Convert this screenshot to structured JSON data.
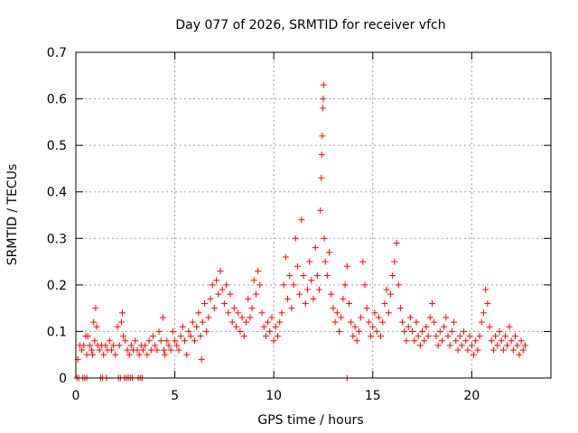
{
  "chart_data": {
    "type": "scatter",
    "title": "Day 077 of 2026, SRMTID for receiver vfch",
    "xlabel": "GPS time / hours",
    "ylabel": "SRMTID / TECUs",
    "xlim": [
      0,
      24
    ],
    "ylim": [
      0,
      0.7
    ],
    "x_ticks": [
      0,
      5,
      10,
      15,
      20
    ],
    "x_tick_labels": [
      "0",
      "5",
      "10",
      "15",
      "20"
    ],
    "y_ticks": [
      0,
      0.1,
      0.2,
      0.3,
      0.4,
      0.5,
      0.6,
      0.7
    ],
    "y_tick_labels": [
      "0",
      "0.1",
      "0.2",
      "0.3",
      "0.4",
      "0.5",
      "0.6",
      "0.7"
    ],
    "grid": true,
    "marker": "+",
    "color": "#ff0000",
    "series": [
      {
        "name": "SRMTID",
        "points": [
          [
            0.05,
            0.0
          ],
          [
            0.15,
            0.0
          ],
          [
            0.35,
            0.0
          ],
          [
            0.45,
            0.0
          ],
          [
            0.55,
            0.0
          ],
          [
            1.25,
            0.0
          ],
          [
            1.35,
            0.0
          ],
          [
            1.55,
            0.0
          ],
          [
            2.15,
            0.0
          ],
          [
            2.25,
            0.0
          ],
          [
            2.45,
            0.0
          ],
          [
            2.55,
            0.0
          ],
          [
            2.65,
            0.0
          ],
          [
            2.75,
            0.0
          ],
          [
            2.85,
            0.0
          ],
          [
            3.15,
            0.0
          ],
          [
            3.25,
            0.0
          ],
          [
            3.35,
            0.0
          ],
          [
            13.7,
            0.0
          ],
          [
            0.1,
            0.04
          ],
          [
            0.2,
            0.07
          ],
          [
            0.3,
            0.06
          ],
          [
            0.4,
            0.07
          ],
          [
            0.5,
            0.09
          ],
          [
            0.55,
            0.05
          ],
          [
            0.6,
            0.09
          ],
          [
            0.7,
            0.07
          ],
          [
            0.8,
            0.06
          ],
          [
            0.85,
            0.05
          ],
          [
            0.9,
            0.12
          ],
          [
            0.95,
            0.08
          ],
          [
            1.0,
            0.15
          ],
          [
            1.05,
            0.11
          ],
          [
            1.1,
            0.07
          ],
          [
            1.2,
            0.06
          ],
          [
            1.3,
            0.07
          ],
          [
            1.4,
            0.05
          ],
          [
            1.5,
            0.07
          ],
          [
            1.6,
            0.06
          ],
          [
            1.7,
            0.08
          ],
          [
            1.8,
            0.06
          ],
          [
            1.9,
            0.07
          ],
          [
            2.0,
            0.05
          ],
          [
            2.1,
            0.11
          ],
          [
            2.2,
            0.07
          ],
          [
            2.3,
            0.12
          ],
          [
            2.35,
            0.14
          ],
          [
            2.4,
            0.09
          ],
          [
            2.5,
            0.08
          ],
          [
            2.6,
            0.06
          ],
          [
            2.7,
            0.05
          ],
          [
            2.8,
            0.07
          ],
          [
            2.9,
            0.06
          ],
          [
            3.0,
            0.08
          ],
          [
            3.1,
            0.06
          ],
          [
            3.2,
            0.05
          ],
          [
            3.3,
            0.07
          ],
          [
            3.4,
            0.06
          ],
          [
            3.5,
            0.07
          ],
          [
            3.6,
            0.05
          ],
          [
            3.7,
            0.08
          ],
          [
            3.8,
            0.06
          ],
          [
            3.9,
            0.09
          ],
          [
            4.0,
            0.07
          ],
          [
            4.1,
            0.06
          ],
          [
            4.2,
            0.1
          ],
          [
            4.3,
            0.08
          ],
          [
            4.4,
            0.13
          ],
          [
            4.45,
            0.06
          ],
          [
            4.5,
            0.05
          ],
          [
            4.6,
            0.08
          ],
          [
            4.7,
            0.07
          ],
          [
            4.8,
            0.06
          ],
          [
            4.9,
            0.1
          ],
          [
            5.0,
            0.08
          ],
          [
            5.1,
            0.07
          ],
          [
            5.2,
            0.06
          ],
          [
            5.3,
            0.09
          ],
          [
            5.4,
            0.11
          ],
          [
            5.5,
            0.08
          ],
          [
            5.6,
            0.05
          ],
          [
            5.7,
            0.1
          ],
          [
            5.8,
            0.09
          ],
          [
            5.9,
            0.12
          ],
          [
            6.0,
            0.08
          ],
          [
            6.1,
            0.11
          ],
          [
            6.2,
            0.14
          ],
          [
            6.3,
            0.09
          ],
          [
            6.35,
            0.04
          ],
          [
            6.4,
            0.12
          ],
          [
            6.5,
            0.16
          ],
          [
            6.6,
            0.1
          ],
          [
            6.7,
            0.13
          ],
          [
            6.8,
            0.17
          ],
          [
            6.9,
            0.2
          ],
          [
            7.0,
            0.15
          ],
          [
            7.1,
            0.21
          ],
          [
            7.2,
            0.18
          ],
          [
            7.3,
            0.23
          ],
          [
            7.4,
            0.19
          ],
          [
            7.5,
            0.16
          ],
          [
            7.6,
            0.2
          ],
          [
            7.7,
            0.14
          ],
          [
            7.8,
            0.18
          ],
          [
            7.9,
            0.12
          ],
          [
            8.0,
            0.15
          ],
          [
            8.1,
            0.11
          ],
          [
            8.2,
            0.14
          ],
          [
            8.3,
            0.1
          ],
          [
            8.4,
            0.13
          ],
          [
            8.5,
            0.09
          ],
          [
            8.6,
            0.12
          ],
          [
            8.7,
            0.17
          ],
          [
            8.8,
            0.13
          ],
          [
            8.9,
            0.15
          ],
          [
            9.0,
            0.21
          ],
          [
            9.1,
            0.18
          ],
          [
            9.2,
            0.23
          ],
          [
            9.3,
            0.2
          ],
          [
            9.4,
            0.14
          ],
          [
            9.5,
            0.11
          ],
          [
            9.6,
            0.09
          ],
          [
            9.7,
            0.12
          ],
          [
            9.8,
            0.1
          ],
          [
            9.9,
            0.13
          ],
          [
            10.0,
            0.08
          ],
          [
            10.1,
            0.11
          ],
          [
            10.2,
            0.09
          ],
          [
            10.3,
            0.12
          ],
          [
            10.4,
            0.14
          ],
          [
            10.5,
            0.2
          ],
          [
            10.6,
            0.26
          ],
          [
            10.7,
            0.17
          ],
          [
            10.8,
            0.22
          ],
          [
            10.9,
            0.15
          ],
          [
            11.0,
            0.2
          ],
          [
            11.1,
            0.3
          ],
          [
            11.2,
            0.24
          ],
          [
            11.3,
            0.18
          ],
          [
            11.4,
            0.34
          ],
          [
            11.5,
            0.22
          ],
          [
            11.6,
            0.16
          ],
          [
            11.7,
            0.19
          ],
          [
            11.8,
            0.25
          ],
          [
            11.9,
            0.21
          ],
          [
            12.0,
            0.17
          ],
          [
            12.1,
            0.28
          ],
          [
            12.2,
            0.22
          ],
          [
            12.3,
            0.19
          ],
          [
            12.35,
            0.36
          ],
          [
            12.4,
            0.43
          ],
          [
            12.42,
            0.48
          ],
          [
            12.45,
            0.52
          ],
          [
            12.48,
            0.58
          ],
          [
            12.5,
            0.6
          ],
          [
            12.52,
            0.63
          ],
          [
            12.55,
            0.3
          ],
          [
            12.6,
            0.25
          ],
          [
            12.7,
            0.22
          ],
          [
            12.8,
            0.27
          ],
          [
            12.9,
            0.18
          ],
          [
            13.0,
            0.15
          ],
          [
            13.1,
            0.12
          ],
          [
            13.2,
            0.14
          ],
          [
            13.3,
            0.1
          ],
          [
            13.4,
            0.13
          ],
          [
            13.5,
            0.17
          ],
          [
            13.6,
            0.2
          ],
          [
            13.7,
            0.24
          ],
          [
            13.8,
            0.16
          ],
          [
            13.9,
            0.12
          ],
          [
            14.0,
            0.09
          ],
          [
            14.1,
            0.11
          ],
          [
            14.2,
            0.08
          ],
          [
            14.3,
            0.1
          ],
          [
            14.4,
            0.13
          ],
          [
            14.5,
            0.25
          ],
          [
            14.6,
            0.2
          ],
          [
            14.7,
            0.15
          ],
          [
            14.8,
            0.12
          ],
          [
            14.9,
            0.09
          ],
          [
            15.0,
            0.11
          ],
          [
            15.1,
            0.14
          ],
          [
            15.2,
            0.1
          ],
          [
            15.3,
            0.13
          ],
          [
            15.4,
            0.09
          ],
          [
            15.5,
            0.12
          ],
          [
            15.6,
            0.16
          ],
          [
            15.7,
            0.19
          ],
          [
            15.8,
            0.14
          ],
          [
            15.9,
            0.18
          ],
          [
            16.0,
            0.22
          ],
          [
            16.1,
            0.25
          ],
          [
            16.2,
            0.29
          ],
          [
            16.3,
            0.2
          ],
          [
            16.4,
            0.15
          ],
          [
            16.5,
            0.12
          ],
          [
            16.6,
            0.1
          ],
          [
            16.7,
            0.08
          ],
          [
            16.8,
            0.11
          ],
          [
            16.9,
            0.13
          ],
          [
            17.0,
            0.1
          ],
          [
            17.1,
            0.08
          ],
          [
            17.2,
            0.12
          ],
          [
            17.3,
            0.09
          ],
          [
            17.4,
            0.07
          ],
          [
            17.5,
            0.1
          ],
          [
            17.6,
            0.08
          ],
          [
            17.7,
            0.11
          ],
          [
            17.8,
            0.09
          ],
          [
            17.9,
            0.13
          ],
          [
            18.0,
            0.16
          ],
          [
            18.1,
            0.12
          ],
          [
            18.2,
            0.09
          ],
          [
            18.3,
            0.07
          ],
          [
            18.4,
            0.1
          ],
          [
            18.5,
            0.08
          ],
          [
            18.6,
            0.11
          ],
          [
            18.7,
            0.13
          ],
          [
            18.8,
            0.09
          ],
          [
            18.9,
            0.07
          ],
          [
            19.0,
            0.1
          ],
          [
            19.1,
            0.12
          ],
          [
            19.2,
            0.08
          ],
          [
            19.3,
            0.06
          ],
          [
            19.4,
            0.09
          ],
          [
            19.5,
            0.07
          ],
          [
            19.6,
            0.1
          ],
          [
            19.7,
            0.08
          ],
          [
            19.8,
            0.06
          ],
          [
            19.9,
            0.09
          ],
          [
            20.0,
            0.07
          ],
          [
            20.1,
            0.05
          ],
          [
            20.2,
            0.08
          ],
          [
            20.3,
            0.06
          ],
          [
            20.4,
            0.09
          ],
          [
            20.5,
            0.12
          ],
          [
            20.6,
            0.14
          ],
          [
            20.7,
            0.19
          ],
          [
            20.8,
            0.16
          ],
          [
            20.9,
            0.11
          ],
          [
            21.0,
            0.08
          ],
          [
            21.1,
            0.06
          ],
          [
            21.2,
            0.09
          ],
          [
            21.3,
            0.07
          ],
          [
            21.4,
            0.1
          ],
          [
            21.5,
            0.08
          ],
          [
            21.6,
            0.06
          ],
          [
            21.7,
            0.09
          ],
          [
            21.8,
            0.07
          ],
          [
            21.9,
            0.11
          ],
          [
            22.0,
            0.08
          ],
          [
            22.1,
            0.06
          ],
          [
            22.2,
            0.09
          ],
          [
            22.3,
            0.07
          ],
          [
            22.4,
            0.05
          ],
          [
            22.5,
            0.08
          ],
          [
            22.6,
            0.06
          ],
          [
            22.7,
            0.07
          ]
        ]
      }
    ]
  }
}
